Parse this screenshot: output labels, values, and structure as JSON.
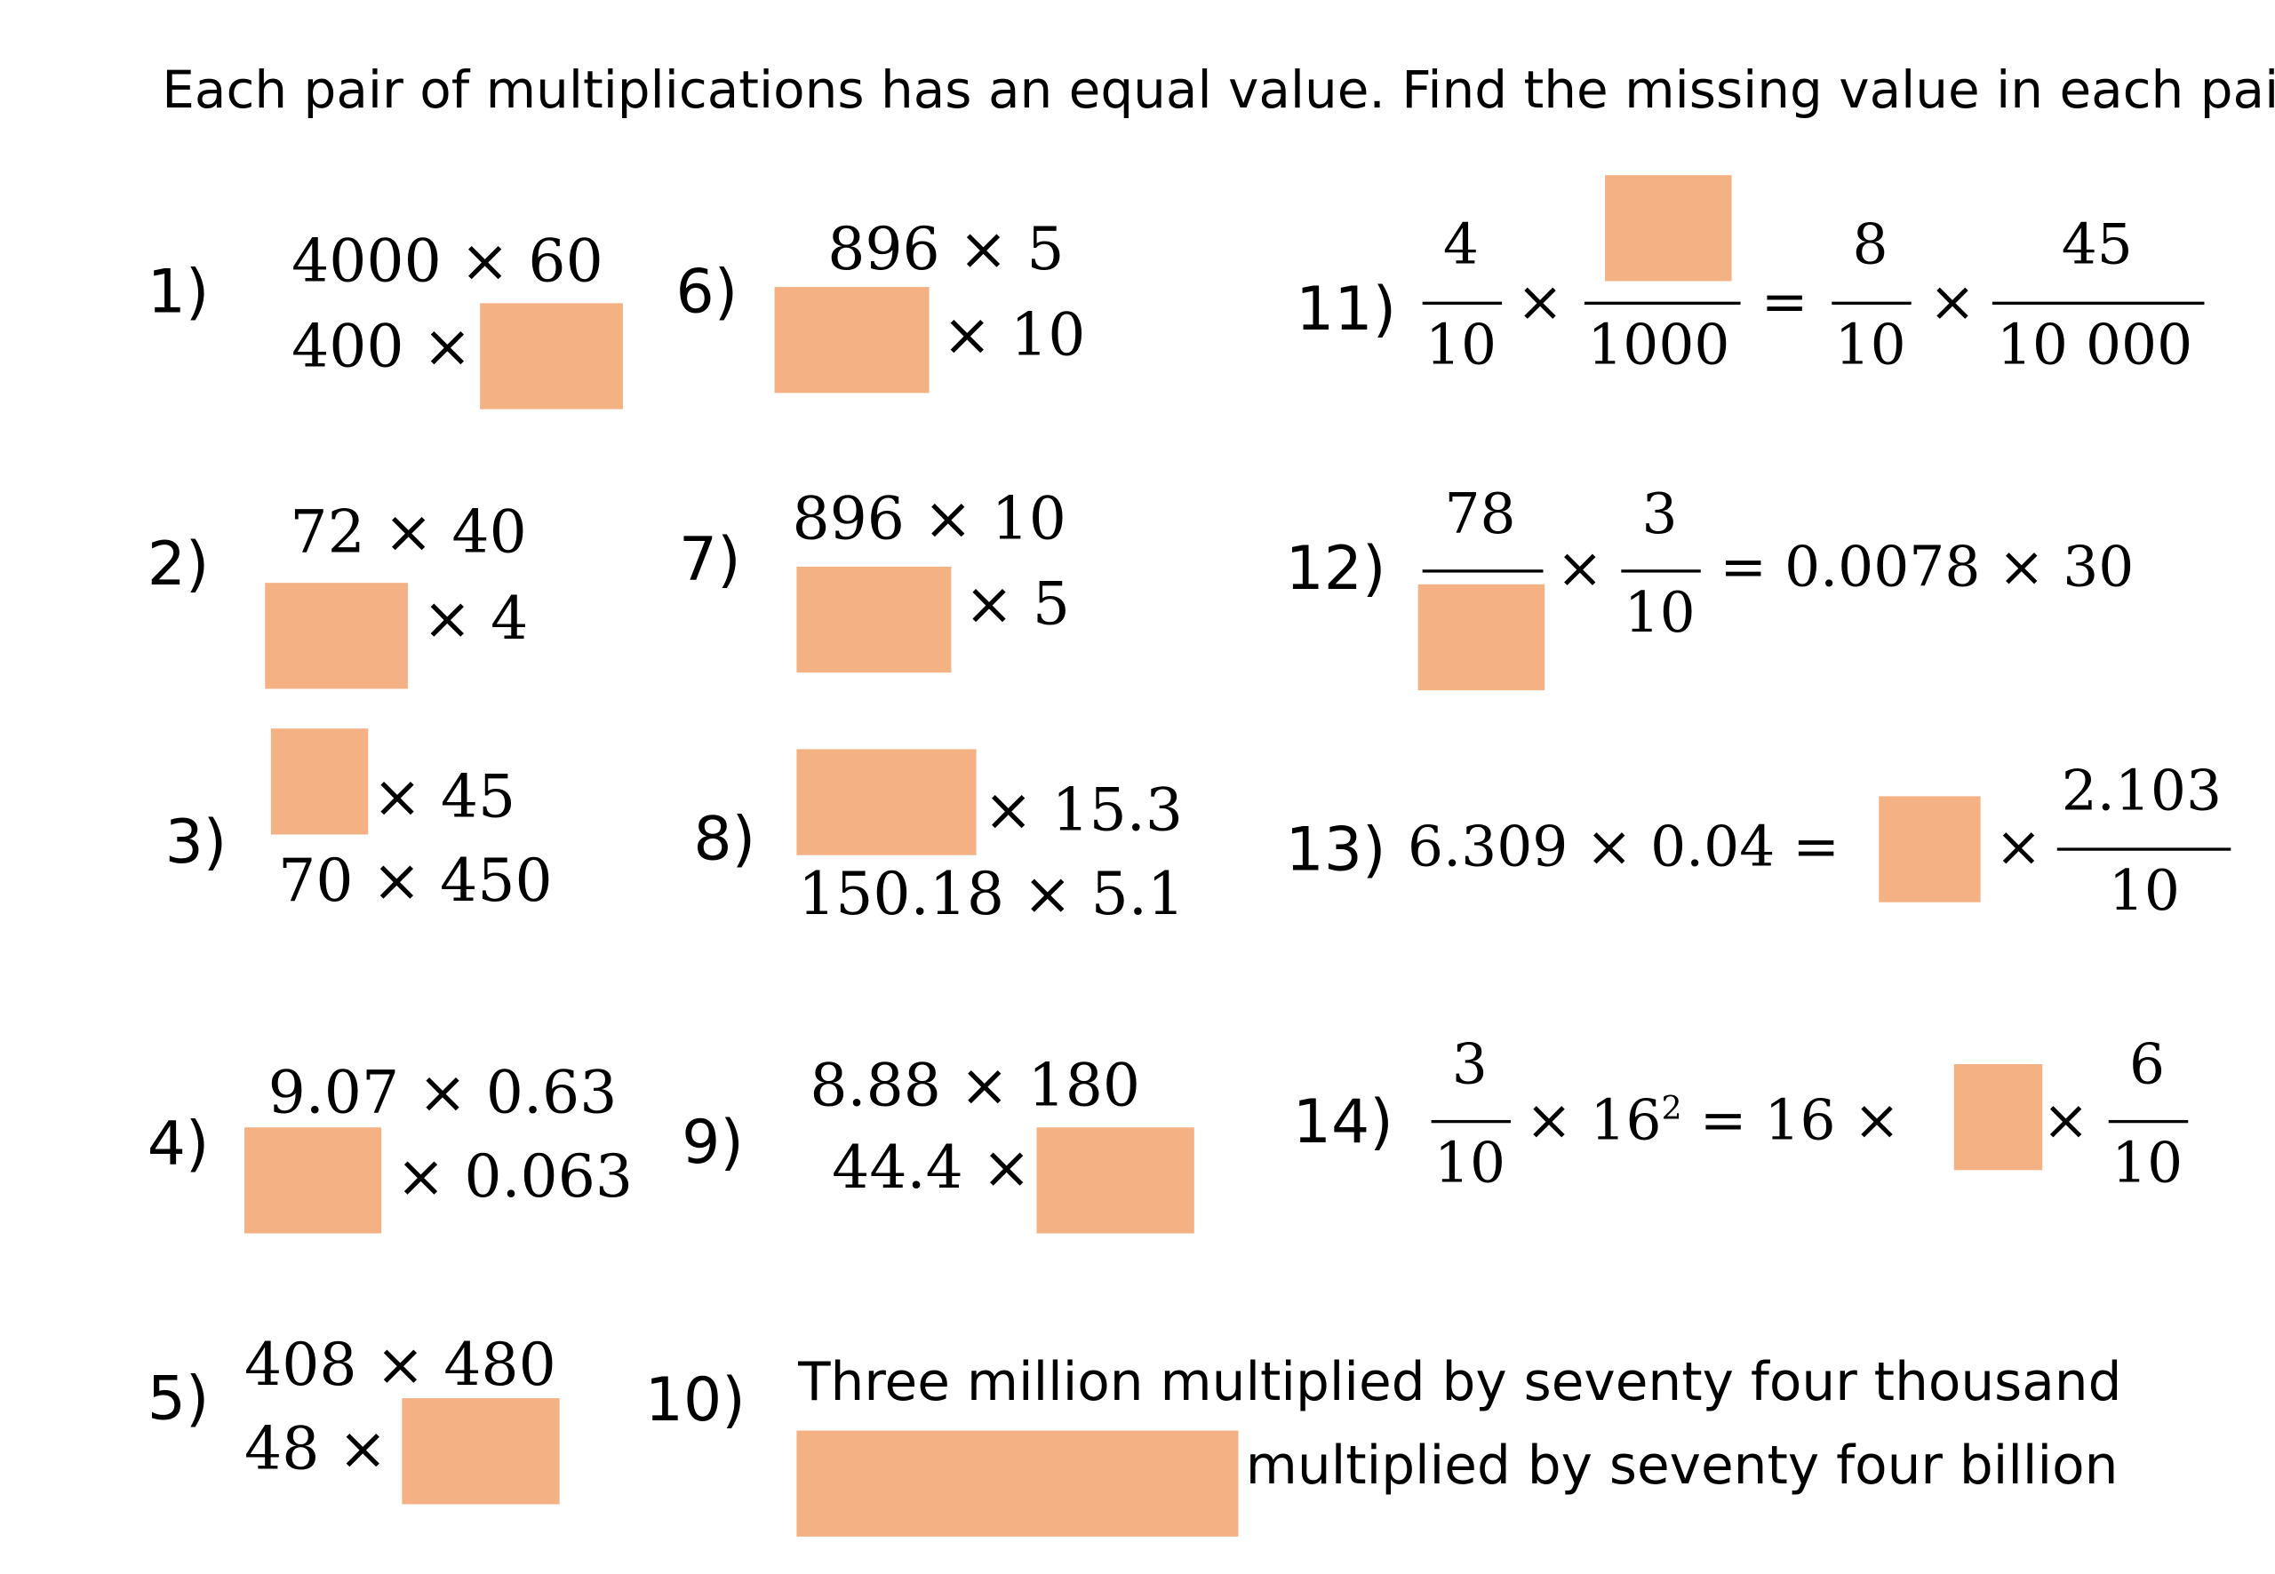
{
  "instruction": "Each pair of multiplications has an equal value. Find the missing value in each pair.",
  "answer_box_color": "#f4b183",
  "problems": [
    {
      "number": "1)",
      "line1": "4000 × 60",
      "line2_left": "400 ×"
    },
    {
      "number": "2)",
      "line1": "72 × 40",
      "line2_right": "× 4"
    },
    {
      "number": "3)",
      "line1_right": "× 45",
      "line2": "70 × 450"
    },
    {
      "number": "4)",
      "line1": "9.07 × 0.63",
      "line2_right": "× 0.063"
    },
    {
      "number": "5)",
      "line1": "408 × 480",
      "line2_left": "48 ×"
    },
    {
      "number": "6)",
      "line1": "896 × 5",
      "line2_right": "× 10"
    },
    {
      "number": "7)",
      "line1": "896 × 10",
      "line2_right": "× 5"
    },
    {
      "number": "8)",
      "line1_right": "× 15.3",
      "line2": "150.18 × 5.1"
    },
    {
      "number": "9)",
      "line1": "8.88 × 180",
      "line2_left": "44.4 ×"
    },
    {
      "number": "10)",
      "line1": "Three million multiplied by seventy four thousand",
      "line2_right": "multiplied by seventy four billion"
    },
    {
      "number": "11)",
      "frac1_num": "4",
      "frac1_den": "10",
      "times1": "×",
      "frac2_den": "1000",
      "equals": "=",
      "frac3_num": "8",
      "frac3_den": "10",
      "times2": "×",
      "frac4_num": "45",
      "frac4_den": "10 000"
    },
    {
      "number": "12)",
      "frac1_num": "78",
      "times1": "×",
      "frac2_num": "3",
      "frac2_den": "10",
      "rhs": "= 0.0078 × 30"
    },
    {
      "number": "13)",
      "lhs": "6.309 × 0.04 =",
      "times": "×",
      "frac_num": "2.103",
      "frac_den": "10"
    },
    {
      "number": "14)",
      "frac1_num": "3",
      "frac1_den": "10",
      "mid_a": "× 16",
      "mid_sup": "2",
      "mid_b": " = 16 ×",
      "times": "×",
      "frac2_num": "6",
      "frac2_den": "10"
    }
  ]
}
